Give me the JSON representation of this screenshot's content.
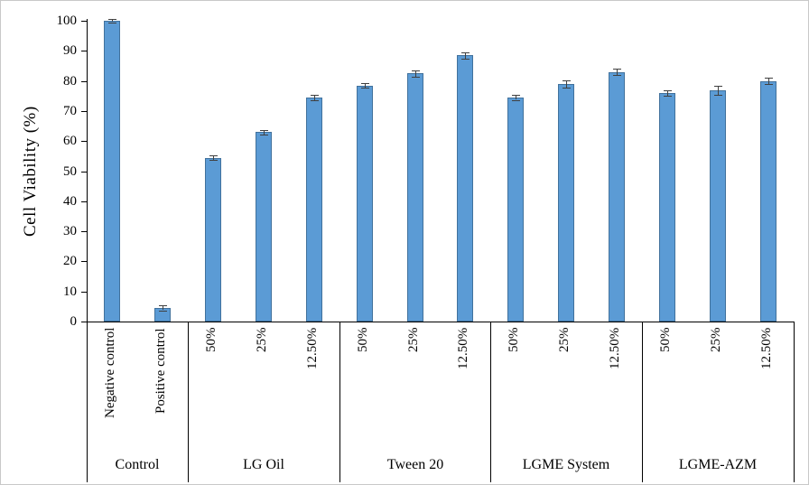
{
  "chart_data": {
    "type": "bar",
    "title": "",
    "ylabel": "Cell Viability (%)",
    "xlabel": "",
    "ylim": [
      0,
      100
    ],
    "ytick_step": 10,
    "grid": false,
    "legend": "none",
    "colors": {
      "bar_fill": "#5B9BD5",
      "bar_border": "#41719C",
      "error_bar": "#404040",
      "axis": "#000000"
    },
    "groups": [
      {
        "label": "Control",
        "bars": [
          {
            "label": "Negative control",
            "value": 100,
            "error": 0.5
          },
          {
            "label": "Positive control",
            "value": 4.5,
            "error": 0.8
          }
        ]
      },
      {
        "label": "LG Oil",
        "bars": [
          {
            "label": "50%",
            "value": 54.5,
            "error": 0.8
          },
          {
            "label": "25%",
            "value": 63,
            "error": 0.8
          },
          {
            "label": "12.50%",
            "value": 74.5,
            "error": 1.0
          }
        ]
      },
      {
        "label": "Tween 20",
        "bars": [
          {
            "label": "50%",
            "value": 78.5,
            "error": 0.8
          },
          {
            "label": "25%",
            "value": 82.5,
            "error": 1.0
          },
          {
            "label": "12.50%",
            "value": 88.5,
            "error": 1.0
          }
        ]
      },
      {
        "label": "LGME System",
        "bars": [
          {
            "label": "50%",
            "value": 74.5,
            "error": 0.8
          },
          {
            "label": "25%",
            "value": 79,
            "error": 1.2
          },
          {
            "label": "12.50%",
            "value": 83,
            "error": 1.0
          }
        ]
      },
      {
        "label": "LGME-AZM",
        "bars": [
          {
            "label": "50%",
            "value": 76,
            "error": 1.0
          },
          {
            "label": "25%",
            "value": 77,
            "error": 1.5
          },
          {
            "label": "12.50%",
            "value": 80,
            "error": 1.0
          }
        ]
      }
    ]
  }
}
